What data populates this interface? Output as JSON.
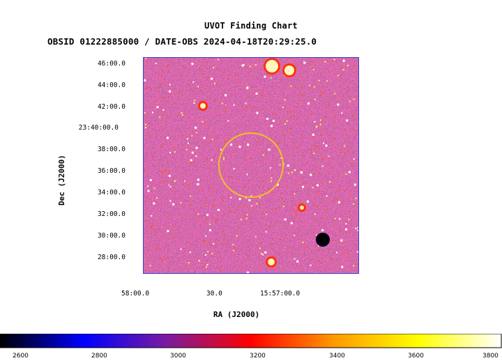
{
  "title": "UVOT Finding Chart",
  "subtitle": "OBSID 01222885000 / DATE-OBS 2024-04-18T20:29:25.0",
  "y_axis": {
    "label": "Dec (J2000)",
    "ticks": [
      "46:00.0",
      "44:00.0",
      "42:00.0",
      "23:40:00.0",
      "38:00.0",
      "36:00.0",
      "34:00.0",
      "32:00.0",
      "30:00.0",
      "28:00.0"
    ]
  },
  "x_axis": {
    "label": "RA (J2000)",
    "ticks": [
      "58:00.0",
      "30.0",
      "15:57:00.0"
    ]
  },
  "colorbar": {
    "ticks": [
      "2600",
      "2800",
      "3000",
      "3200",
      "3400",
      "3600",
      "3800"
    ],
    "colors": [
      "#000000",
      "#0000ff",
      "#7a1c9e",
      "#ff0000",
      "#ff9900",
      "#ffff00",
      "#ffffff"
    ]
  },
  "marker": {
    "shape": "circle",
    "color": "#f0c020"
  },
  "image": {
    "background": "#2a2a9a",
    "border_color": "#3a3ad0"
  }
}
